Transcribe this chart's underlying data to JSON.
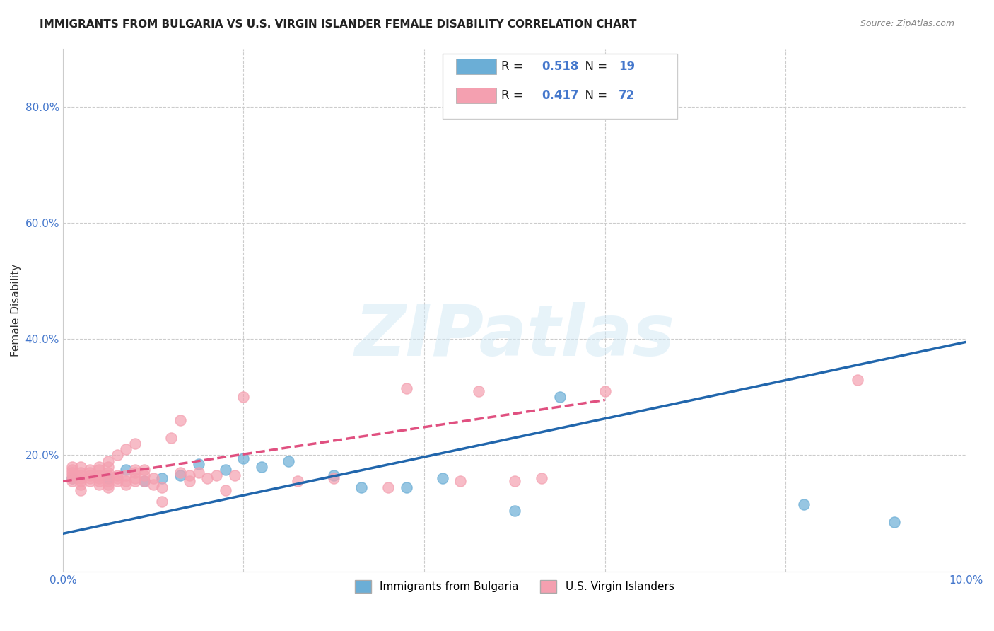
{
  "title": "IMMIGRANTS FROM BULGARIA VS U.S. VIRGIN ISLANDER FEMALE DISABILITY CORRELATION CHART",
  "source": "Source: ZipAtlas.com",
  "xlabel_bottom": "",
  "ylabel": "Female Disability",
  "xlim": [
    0.0,
    0.1
  ],
  "ylim": [
    0.0,
    0.9
  ],
  "xticks": [
    0.0,
    0.02,
    0.04,
    0.06,
    0.08,
    0.1
  ],
  "yticks": [
    0.0,
    0.2,
    0.4,
    0.6,
    0.8
  ],
  "ytick_labels": [
    "",
    "20.0%",
    "40.0%",
    "60.0%",
    "80.0%"
  ],
  "xtick_labels": [
    "0.0%",
    "",
    "",
    "",
    "",
    "10.0%"
  ],
  "blue_color": "#6baed6",
  "pink_color": "#f4a0b0",
  "blue_line_color": "#2166ac",
  "pink_line_color": "#e05080",
  "R_blue": 0.518,
  "N_blue": 19,
  "R_pink": 0.417,
  "N_pink": 72,
  "legend_label_blue": "Immigrants from Bulgaria",
  "legend_label_pink": "U.S. Virgin Islanders",
  "blue_scatter_x": [
    0.001,
    0.005,
    0.007,
    0.009,
    0.011,
    0.013,
    0.015,
    0.018,
    0.02,
    0.022,
    0.025,
    0.03,
    0.033,
    0.038,
    0.042,
    0.05,
    0.055,
    0.082,
    0.092
  ],
  "blue_scatter_y": [
    0.16,
    0.16,
    0.175,
    0.155,
    0.16,
    0.165,
    0.185,
    0.175,
    0.195,
    0.18,
    0.19,
    0.165,
    0.145,
    0.145,
    0.16,
    0.105,
    0.3,
    0.115,
    0.085
  ],
  "pink_scatter_x": [
    0.001,
    0.001,
    0.001,
    0.001,
    0.001,
    0.001,
    0.002,
    0.002,
    0.002,
    0.002,
    0.002,
    0.002,
    0.002,
    0.003,
    0.003,
    0.003,
    0.003,
    0.003,
    0.004,
    0.004,
    0.004,
    0.004,
    0.004,
    0.004,
    0.005,
    0.005,
    0.005,
    0.005,
    0.005,
    0.005,
    0.005,
    0.006,
    0.006,
    0.006,
    0.006,
    0.007,
    0.007,
    0.007,
    0.007,
    0.008,
    0.008,
    0.008,
    0.008,
    0.008,
    0.009,
    0.009,
    0.009,
    0.01,
    0.01,
    0.011,
    0.011,
    0.012,
    0.013,
    0.013,
    0.014,
    0.014,
    0.015,
    0.016,
    0.017,
    0.018,
    0.019,
    0.02,
    0.026,
    0.03,
    0.036,
    0.038,
    0.044,
    0.046,
    0.05,
    0.053,
    0.06,
    0.088
  ],
  "pink_scatter_y": [
    0.155,
    0.16,
    0.165,
    0.17,
    0.175,
    0.18,
    0.14,
    0.15,
    0.155,
    0.16,
    0.165,
    0.17,
    0.18,
    0.155,
    0.16,
    0.165,
    0.17,
    0.175,
    0.15,
    0.155,
    0.16,
    0.165,
    0.175,
    0.18,
    0.145,
    0.15,
    0.155,
    0.165,
    0.17,
    0.18,
    0.19,
    0.155,
    0.16,
    0.165,
    0.2,
    0.15,
    0.155,
    0.165,
    0.21,
    0.155,
    0.16,
    0.17,
    0.175,
    0.22,
    0.155,
    0.165,
    0.175,
    0.15,
    0.16,
    0.12,
    0.145,
    0.23,
    0.17,
    0.26,
    0.155,
    0.165,
    0.17,
    0.16,
    0.165,
    0.14,
    0.165,
    0.3,
    0.155,
    0.16,
    0.145,
    0.315,
    0.155,
    0.31,
    0.155,
    0.16,
    0.31,
    0.33
  ],
  "blue_line_x": [
    0.0,
    0.1
  ],
  "blue_line_y": [
    0.065,
    0.395
  ],
  "pink_line_x": [
    0.0,
    0.06
  ],
  "pink_line_y": [
    0.155,
    0.295
  ],
  "watermark": "ZIPatlas",
  "background_color": "#ffffff",
  "grid_color": "#cccccc"
}
